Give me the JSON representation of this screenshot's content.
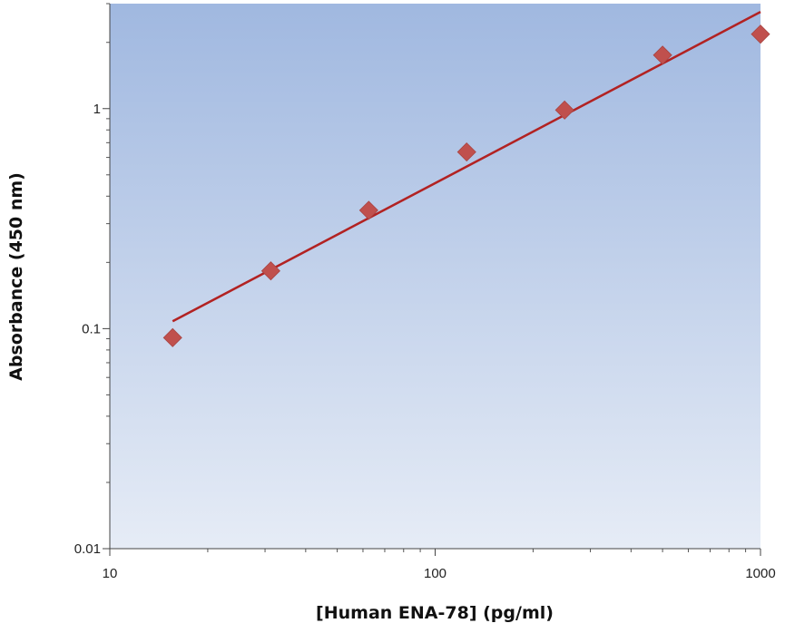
{
  "chart_data": {
    "type": "scatter",
    "title": "",
    "xlabel": "[Human ENA-78] (pg/ml)",
    "ylabel": "Absorbance (450 nm)",
    "xscale": "log",
    "yscale": "log",
    "xlim": [
      10,
      1000
    ],
    "ylim": [
      0.01,
      3
    ],
    "x_ticks": [
      {
        "value": 10,
        "label": "10"
      },
      {
        "value": 100,
        "label": "100"
      },
      {
        "value": 1000,
        "label": "1000"
      }
    ],
    "y_ticks": [
      {
        "value": 0.01,
        "label": "0.01"
      },
      {
        "value": 0.1,
        "label": "0.1"
      },
      {
        "value": 1,
        "label": "1"
      }
    ],
    "series": [
      {
        "marker": "diamond",
        "color": "#c0504d",
        "x": [
          15.6,
          31.25,
          62.5,
          125,
          250,
          500,
          1000
        ],
        "y": [
          0.091,
          0.183,
          0.345,
          0.635,
          0.985,
          1.75,
          2.18
        ]
      }
    ],
    "fit_line": {
      "color": "#b22222",
      "x": [
        15.6,
        1000
      ],
      "y": [
        0.108,
        2.75
      ]
    },
    "background_gradient": [
      "#a0b8e0",
      "#e6ecf6"
    ],
    "grid": false,
    "legend": "none"
  }
}
